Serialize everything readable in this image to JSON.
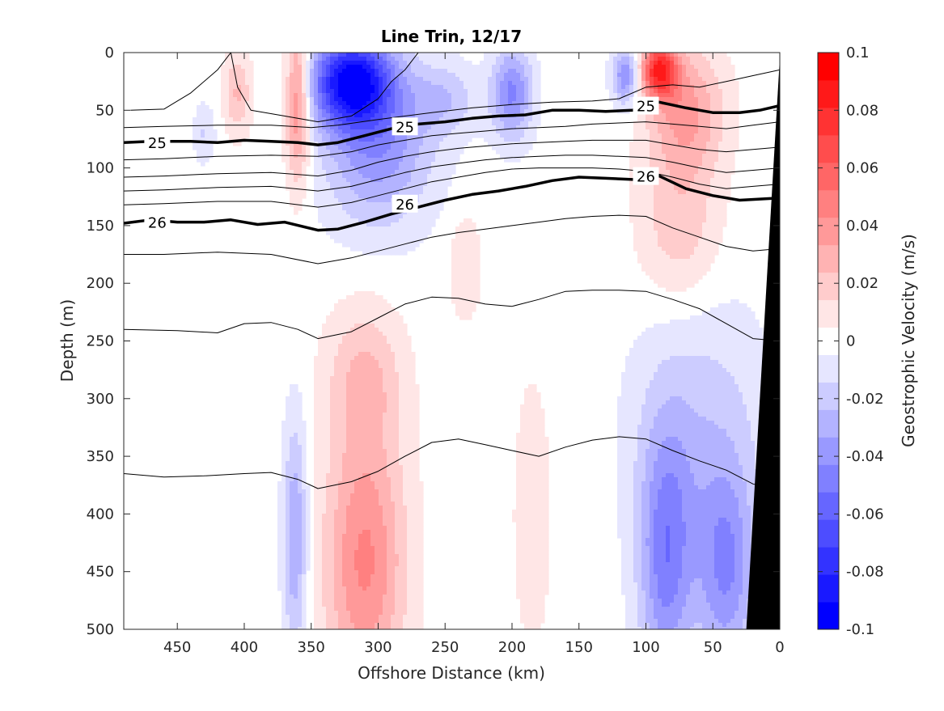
{
  "chart_data": {
    "type": "heatmap",
    "title": "Line Trin, 12/17",
    "xlabel": "Offshore Distance (km)",
    "ylabel": "Depth (m)",
    "colorbar_label": "Geostrophic Velocity (m/s)",
    "xlim": [
      490,
      0
    ],
    "ylim": [
      0,
      500
    ],
    "x_reversed": true,
    "y_reversed": true,
    "x_ticks": [
      "450",
      "400",
      "350",
      "300",
      "250",
      "200",
      "150",
      "100",
      "50",
      "0"
    ],
    "y_ticks": [
      "0",
      "50",
      "100",
      "150",
      "200",
      "250",
      "300",
      "350",
      "400",
      "450",
      "500"
    ],
    "colorbar_ticks": [
      "0.1",
      "0.08",
      "0.06",
      "0.04",
      "0.02",
      "0",
      "-0.02",
      "-0.04",
      "-0.06",
      "-0.08",
      "-0.1"
    ],
    "colorbar_range": [
      -0.1,
      0.1
    ],
    "colorbar_levels": 21,
    "colors": {
      "positive": "#ff0000",
      "negative": "#0000ff",
      "zero": "#ffffff",
      "bathymetry": "#000000"
    },
    "velocity_features": [
      {
        "x": 90,
        "y": 15,
        "sx": 14,
        "sy": 25,
        "amp": 0.075
      },
      {
        "x": 70,
        "y": 50,
        "sx": 28,
        "sy": 55,
        "amp": 0.035
      },
      {
        "x": 75,
        "y": 150,
        "sx": 30,
        "sy": 70,
        "amp": 0.022
      },
      {
        "x": 360,
        "y": 40,
        "sx": 9,
        "sy": 70,
        "amp": 0.05
      },
      {
        "x": 405,
        "y": 35,
        "sx": 10,
        "sy": 35,
        "amp": 0.025
      },
      {
        "x": 235,
        "y": 185,
        "sx": 12,
        "sy": 45,
        "amp": 0.014
      },
      {
        "x": 310,
        "y": 440,
        "sx": 30,
        "sy": 120,
        "amp": 0.045
      },
      {
        "x": 310,
        "y": 280,
        "sx": 28,
        "sy": 60,
        "amp": 0.022
      },
      {
        "x": 185,
        "y": 400,
        "sx": 13,
        "sy": 110,
        "amp": 0.014
      },
      {
        "x": 320,
        "y": 25,
        "sx": 30,
        "sy": 40,
        "amp": -0.09
      },
      {
        "x": 300,
        "y": 80,
        "sx": 40,
        "sy": 70,
        "amp": -0.04
      },
      {
        "x": 200,
        "y": 35,
        "sx": 15,
        "sy": 40,
        "amp": -0.045
      },
      {
        "x": 115,
        "y": 20,
        "sx": 10,
        "sy": 25,
        "amp": -0.045
      },
      {
        "x": 250,
        "y": 40,
        "sx": 25,
        "sy": 30,
        "amp": -0.02
      },
      {
        "x": 430,
        "y": 70,
        "sx": 8,
        "sy": 25,
        "amp": -0.015
      },
      {
        "x": 362,
        "y": 420,
        "sx": 9,
        "sy": 100,
        "amp": -0.035
      },
      {
        "x": 85,
        "y": 440,
        "sx": 20,
        "sy": 110,
        "amp": -0.045
      },
      {
        "x": 40,
        "y": 450,
        "sx": 22,
        "sy": 90,
        "amp": -0.04
      },
      {
        "x": 60,
        "y": 330,
        "sx": 50,
        "sy": 120,
        "amp": -0.02
      }
    ],
    "isopycnals": [
      {
        "label": "",
        "bold": false,
        "x": [
          485,
          460,
          440,
          420,
          410
        ],
        "y": [
          50,
          49,
          35,
          15,
          0
        ]
      },
      {
        "label": "",
        "bold": false,
        "x": [
          410,
          405,
          395,
          370,
          345,
          320,
          300,
          290,
          280,
          270
        ],
        "y": [
          0,
          30,
          50,
          55,
          60,
          55,
          40,
          25,
          15,
          0
        ]
      },
      {
        "label": "",
        "bold": false,
        "x": [
          490,
          460,
          420,
          380,
          350,
          330,
          300,
          260,
          230,
          200,
          170,
          140,
          120,
          100,
          80,
          60,
          40,
          20,
          0
        ],
        "y": [
          65,
          64,
          63,
          63,
          65,
          63,
          58,
          52,
          48,
          45,
          43,
          42,
          40,
          30,
          28,
          30,
          25,
          20,
          15
        ]
      },
      {
        "label": "25",
        "bold": true,
        "x": [
          490,
          470,
          440,
          420,
          400,
          380,
          360,
          345,
          330,
          310,
          290,
          270,
          250,
          230,
          210,
          190,
          170,
          150,
          130,
          110,
          90,
          70,
          50,
          30,
          15,
          0
        ],
        "y": [
          78,
          77,
          77,
          78,
          76,
          77,
          78,
          80,
          78,
          72,
          66,
          62,
          60,
          57,
          55,
          54,
          50,
          50,
          51,
          50,
          43,
          48,
          52,
          52,
          50,
          46
        ]
      },
      {
        "label": "",
        "bold": false,
        "x": [
          490,
          460,
          420,
          380,
          345,
          320,
          300,
          280,
          260,
          240,
          220,
          200,
          180,
          160,
          140,
          120,
          100,
          80,
          60,
          40,
          20,
          0
        ],
        "y": [
          93,
          92,
          90,
          89,
          90,
          86,
          80,
          76,
          72,
          70,
          68,
          66,
          65,
          64,
          62,
          61,
          60,
          62,
          64,
          66,
          63,
          60
        ]
      },
      {
        "label": "",
        "bold": false,
        "x": [
          490,
          460,
          420,
          380,
          345,
          320,
          300,
          280,
          260,
          240,
          220,
          200,
          180,
          160,
          140,
          120,
          100,
          80,
          60,
          40,
          20,
          0
        ],
        "y": [
          108,
          107,
          105,
          104,
          107,
          102,
          95,
          90,
          86,
          83,
          81,
          79,
          78,
          77,
          76,
          76,
          76,
          80,
          84,
          86,
          84,
          82
        ]
      },
      {
        "label": "",
        "bold": false,
        "x": [
          490,
          460,
          420,
          380,
          345,
          320,
          300,
          280,
          260,
          240,
          220,
          200,
          180,
          160,
          140,
          120,
          100,
          80,
          60,
          40,
          20,
          0
        ],
        "y": [
          120,
          119,
          117,
          116,
          120,
          116,
          110,
          104,
          99,
          96,
          93,
          91,
          90,
          89,
          89,
          90,
          91,
          95,
          100,
          104,
          102,
          100
        ]
      },
      {
        "label": "",
        "bold": false,
        "x": [
          490,
          460,
          420,
          380,
          345,
          320,
          300,
          280,
          260,
          240,
          220,
          200,
          180,
          160,
          140,
          120,
          100,
          80,
          60,
          40,
          20,
          0
        ],
        "y": [
          132,
          131,
          129,
          129,
          134,
          130,
          124,
          118,
          112,
          108,
          104,
          101,
          100,
          100,
          100,
          101,
          103,
          108,
          114,
          118,
          116,
          114
        ]
      },
      {
        "label": "26",
        "bold": true,
        "x": [
          490,
          470,
          450,
          430,
          410,
          390,
          370,
          345,
          330,
          310,
          290,
          270,
          250,
          230,
          210,
          190,
          170,
          150,
          130,
          110,
          90,
          70,
          50,
          30,
          15,
          0
        ],
        "y": [
          148,
          145,
          147,
          147,
          145,
          149,
          147,
          154,
          153,
          147,
          140,
          134,
          128,
          123,
          120,
          116,
          111,
          108,
          109,
          110,
          107,
          118,
          124,
          128,
          127,
          126
        ]
      },
      {
        "label": "",
        "bold": false,
        "x": [
          490,
          460,
          420,
          380,
          345,
          320,
          300,
          280,
          260,
          240,
          220,
          200,
          180,
          160,
          140,
          120,
          100,
          80,
          60,
          40,
          20,
          0
        ],
        "y": [
          175,
          175,
          173,
          175,
          183,
          178,
          172,
          166,
          160,
          156,
          153,
          150,
          147,
          144,
          142,
          141,
          142,
          152,
          160,
          168,
          172,
          170
        ]
      },
      {
        "label": "",
        "bold": false,
        "x": [
          490,
          450,
          420,
          400,
          380,
          360,
          345,
          320,
          300,
          280,
          260,
          240,
          220,
          200,
          180,
          160,
          140,
          120,
          100,
          80,
          60,
          40,
          20,
          0
        ],
        "y": [
          240,
          241,
          243,
          235,
          234,
          240,
          248,
          242,
          230,
          218,
          212,
          213,
          218,
          220,
          214,
          207,
          206,
          206,
          207,
          214,
          222,
          235,
          248,
          250
        ]
      },
      {
        "label": "",
        "bold": false,
        "x": [
          490,
          460,
          430,
          400,
          380,
          360,
          345,
          320,
          300,
          280,
          260,
          240,
          220,
          200,
          180,
          160,
          140,
          120,
          100,
          80,
          60,
          40,
          20,
          0
        ],
        "y": [
          365,
          368,
          367,
          365,
          364,
          370,
          378,
          372,
          363,
          350,
          338,
          335,
          340,
          345,
          350,
          342,
          336,
          333,
          335,
          345,
          354,
          362,
          374,
          380
        ]
      }
    ],
    "contour_labels": [
      {
        "text": "25",
        "x": 465,
        "y": 78
      },
      {
        "text": "25",
        "x": 280,
        "y": 64
      },
      {
        "text": "25",
        "x": 100,
        "y": 46
      },
      {
        "text": "26",
        "x": 465,
        "y": 147
      },
      {
        "text": "26",
        "x": 280,
        "y": 131
      },
      {
        "text": "26",
        "x": 100,
        "y": 107
      }
    ],
    "bathymetry": {
      "x": [
        0,
        0,
        25
      ],
      "y": [
        500,
        5,
        500
      ]
    }
  }
}
